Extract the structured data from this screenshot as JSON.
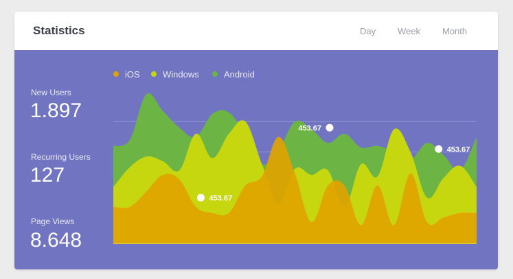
{
  "header": {
    "title": "Statistics",
    "tabs": [
      "Day",
      "Week",
      "Month"
    ]
  },
  "colors": {
    "panel": "#7175c1",
    "ios": "#e0a400",
    "windows": "#c7d70f",
    "android": "#6cb545",
    "gridline": "#8e92d3"
  },
  "stats": [
    {
      "label": "New Users",
      "value": "1.897"
    },
    {
      "label": "Recurring Users",
      "value": "127"
    },
    {
      "label": "Page Views",
      "value": "8.648"
    }
  ],
  "chart_data": {
    "type": "area",
    "x": [
      0,
      1,
      2,
      3,
      4,
      5,
      6,
      7,
      8,
      9,
      10,
      11,
      12,
      13,
      14,
      15,
      16,
      17,
      18,
      19,
      20,
      21,
      22
    ],
    "ylim": [
      0,
      100
    ],
    "grid": true,
    "legend_position": "top-left",
    "series": [
      {
        "name": "iOS",
        "color": "#e0a400",
        "values": [
          24,
          24,
          34,
          45,
          42,
          24,
          20,
          20,
          38,
          44,
          70,
          46,
          14,
          38,
          38,
          12,
          38,
          12,
          46,
          14,
          17,
          20,
          20
        ]
      },
      {
        "name": "Windows",
        "color": "#c7d70f",
        "values": [
          37,
          50,
          57,
          54,
          48,
          72,
          56,
          72,
          80,
          52,
          26,
          49,
          45,
          48,
          24,
          52,
          44,
          75,
          60,
          30,
          43,
          51,
          37
        ]
      },
      {
        "name": "Android",
        "color": "#6cb545",
        "values": [
          64,
          68,
          98,
          87,
          76,
          70,
          85,
          86,
          71,
          52,
          61,
          80,
          75,
          66,
          72,
          63,
          64,
          60,
          55,
          66,
          58,
          48,
          70
        ]
      }
    ],
    "annotations": [
      {
        "x": 5.3,
        "y": 30,
        "label": "453.67"
      },
      {
        "x": 13.1,
        "y": 76,
        "label": "453.67"
      },
      {
        "x": 19.7,
        "y": 62,
        "label": "453.67"
      }
    ]
  }
}
